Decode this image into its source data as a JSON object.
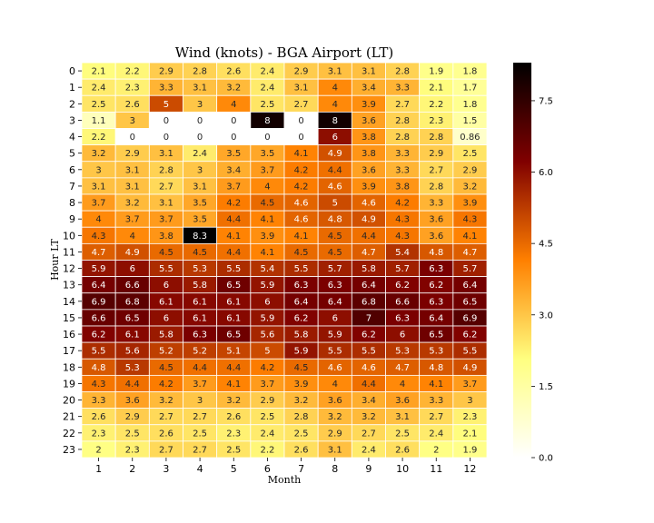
{
  "chart_data": {
    "type": "heatmap",
    "title": "Wind (knots) - BGA Airport (LT)",
    "xlabel": "Month",
    "ylabel": "Hour LT",
    "x_categories": [
      "1",
      "2",
      "3",
      "4",
      "5",
      "6",
      "7",
      "8",
      "9",
      "10",
      "11",
      "12"
    ],
    "y_categories": [
      "0",
      "1",
      "2",
      "3",
      "4",
      "5",
      "6",
      "7",
      "8",
      "9",
      "10",
      "11",
      "12",
      "13",
      "14",
      "15",
      "16",
      "17",
      "18",
      "19",
      "20",
      "21",
      "22",
      "23"
    ],
    "values": [
      [
        2.1,
        2.2,
        2.9,
        2.8,
        2.6,
        2.4,
        2.9,
        3.1,
        3.1,
        2.8,
        1.9,
        1.8
      ],
      [
        2.4,
        2.3,
        3.3,
        3.1,
        3.2,
        2.4,
        3.1,
        4,
        3.4,
        3.3,
        2.1,
        1.7
      ],
      [
        2.5,
        2.6,
        5,
        3,
        4,
        2.5,
        2.7,
        4,
        3.9,
        2.7,
        2.2,
        1.8
      ],
      [
        1.1,
        3,
        0,
        0,
        0,
        8,
        0,
        8,
        3.6,
        2.8,
        2.3,
        1.5
      ],
      [
        2.2,
        0,
        0,
        0,
        0,
        0,
        0,
        6,
        3.8,
        2.8,
        2.8,
        0.86
      ],
      [
        3.2,
        2.9,
        3.1,
        2.4,
        3.5,
        3.5,
        4.1,
        4.9,
        3.8,
        3.3,
        2.9,
        2.5
      ],
      [
        3,
        3.1,
        2.8,
        3,
        3.4,
        3.7,
        4.2,
        4.4,
        3.6,
        3.3,
        2.7,
        2.9
      ],
      [
        3.1,
        3.1,
        2.7,
        3.1,
        3.7,
        4,
        4.2,
        4.6,
        3.9,
        3.8,
        2.8,
        3.2
      ],
      [
        3.7,
        3.2,
        3.1,
        3.5,
        4.2,
        4.5,
        4.6,
        5,
        4.6,
        4.2,
        3.3,
        3.9
      ],
      [
        4,
        3.7,
        3.7,
        3.5,
        4.4,
        4.1,
        4.6,
        4.8,
        4.9,
        4.3,
        3.6,
        4.3
      ],
      [
        4.3,
        4,
        3.8,
        8.3,
        4.1,
        3.9,
        4.1,
        4.5,
        4.4,
        4.3,
        3.6,
        4.1
      ],
      [
        4.7,
        4.9,
        4.5,
        4.5,
        4.4,
        4.1,
        4.5,
        4.5,
        4.7,
        5.4,
        4.8,
        4.7
      ],
      [
        5.9,
        6,
        5.5,
        5.3,
        5.5,
        5.4,
        5.5,
        5.7,
        5.8,
        5.7,
        6.3,
        5.7
      ],
      [
        6.4,
        6.6,
        6,
        5.8,
        6.5,
        5.9,
        6.3,
        6.3,
        6.4,
        6.2,
        6.2,
        6.4
      ],
      [
        6.9,
        6.8,
        6.1,
        6.1,
        6.1,
        6,
        6.4,
        6.4,
        6.8,
        6.6,
        6.3,
        6.5
      ],
      [
        6.6,
        6.5,
        6,
        6.1,
        6.1,
        5.9,
        6.2,
        6,
        7,
        6.3,
        6.4,
        6.9
      ],
      [
        6.2,
        6.1,
        5.8,
        6.3,
        6.5,
        5.6,
        5.8,
        5.9,
        6.2,
        6,
        6.5,
        6.2
      ],
      [
        5.5,
        5.6,
        5.2,
        5.2,
        5.1,
        5,
        5.9,
        5.5,
        5.5,
        5.3,
        5.3,
        5.5
      ],
      [
        4.8,
        5.3,
        4.5,
        4.4,
        4.4,
        4.2,
        4.5,
        4.6,
        4.6,
        4.7,
        4.8,
        4.9
      ],
      [
        4.3,
        4.4,
        4.2,
        3.7,
        4.1,
        3.7,
        3.9,
        4,
        4.4,
        4,
        4.1,
        3.7
      ],
      [
        3.3,
        3.6,
        3.2,
        3,
        3.2,
        2.9,
        3.2,
        3.6,
        3.4,
        3.6,
        3.3,
        3
      ],
      [
        2.6,
        2.9,
        2.7,
        2.7,
        2.6,
        2.5,
        2.8,
        3.2,
        3.2,
        3.1,
        2.7,
        2.3
      ],
      [
        2.3,
        2.5,
        2.6,
        2.5,
        2.3,
        2.4,
        2.5,
        2.9,
        2.7,
        2.5,
        2.4,
        2.1
      ],
      [
        2,
        2.3,
        2.7,
        2.7,
        2.5,
        2.2,
        2.6,
        3.1,
        2.4,
        2.6,
        2,
        1.9
      ]
    ],
    "colormap": "afmhot_r",
    "vmin": 0,
    "vmax": 8.3,
    "colorbar_ticks": [
      0.0,
      1.5,
      3.0,
      4.5,
      6.0,
      7.5
    ],
    "colorbar_tick_labels": [
      "0.0",
      "1.5",
      "3.0",
      "4.5",
      "6.0",
      "7.5"
    ],
    "grid": false,
    "cell_border_color": "#ffffff"
  }
}
